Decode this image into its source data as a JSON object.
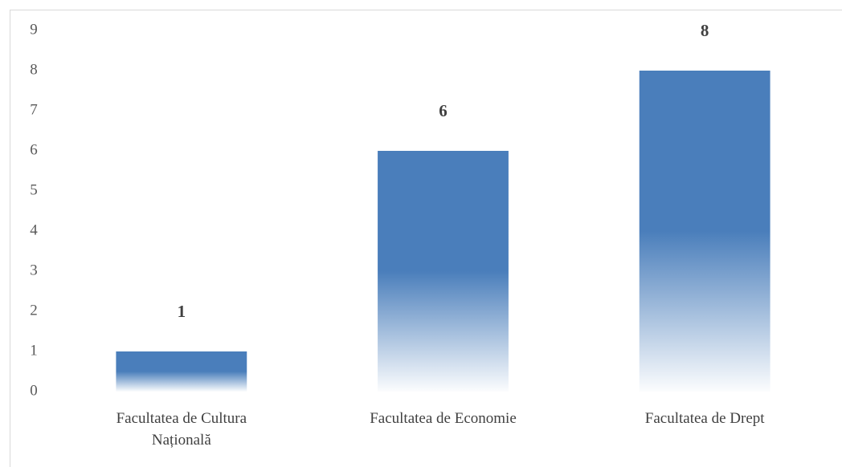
{
  "chart_data": {
    "type": "bar",
    "categories": [
      "Facultatea de Cultura Națională",
      "Facultatea de Economie",
      "Facultatea de Drept"
    ],
    "values": [
      1,
      6,
      8
    ],
    "color": "#4a7ebb",
    "ylim": [
      0,
      9
    ],
    "yticks": [
      0,
      1,
      2,
      3,
      4,
      5,
      6,
      7,
      8,
      9
    ],
    "grid": false
  }
}
